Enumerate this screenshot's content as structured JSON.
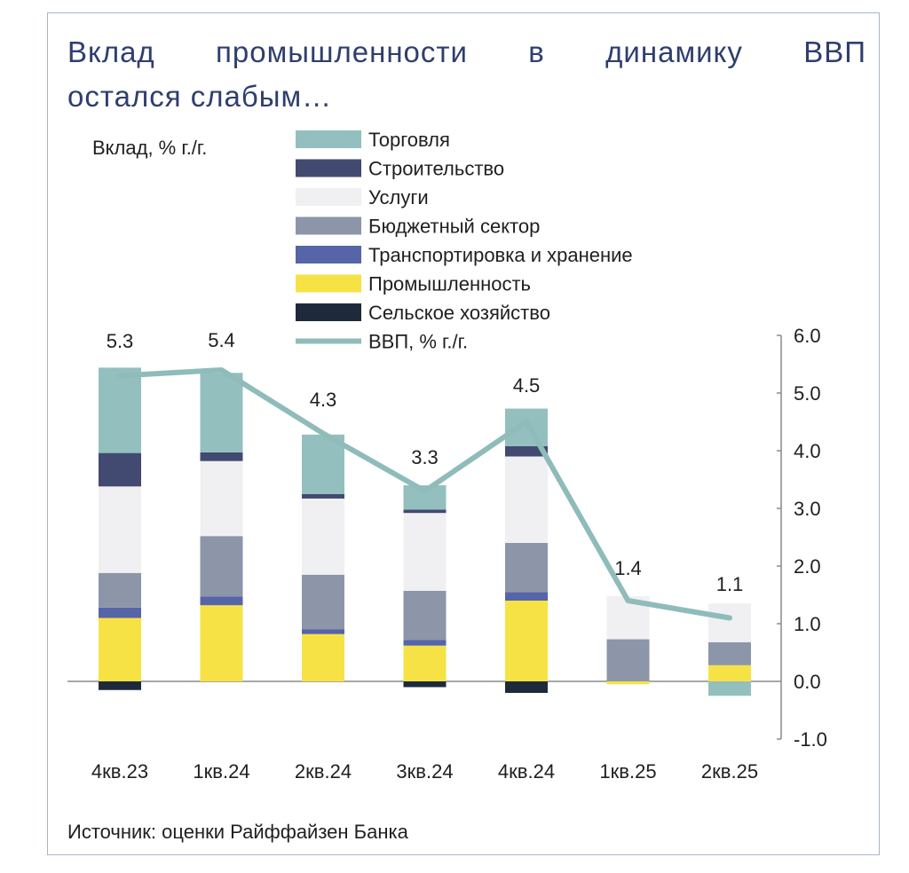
{
  "title_line1_words": [
    "Вклад",
    "промышленности",
    "в",
    "динамику",
    "ВВП"
  ],
  "title_line2": "остался слабым…",
  "source": "Источник: оценки Райффайзен Банка",
  "colors": {
    "trade": "#93c0be",
    "construction": "#424a72",
    "services": "#f0f0f2",
    "budget": "#8c96a8",
    "transport": "#5664a8",
    "industry": "#f7e245",
    "agriculture": "#1e2a3c",
    "gdp_line": "#8fbcba"
  },
  "chart_data": {
    "type": "bar",
    "stacked": true,
    "ylabel": "Вклад, % г./г.",
    "ylim": [
      -1.0,
      6.0
    ],
    "yticks": [
      "-1.0",
      "0.0",
      "1.0",
      "2.0",
      "3.0",
      "4.0",
      "5.0",
      "6.0"
    ],
    "yaxis_position": "right",
    "legend_position": "top",
    "categories": [
      "4кв.23",
      "1кв.24",
      "2кв.24",
      "3кв.24",
      "4кв.24",
      "1кв.25",
      "2кв.25"
    ],
    "series": [
      {
        "key": "agriculture",
        "name": "Сельское хозяйство",
        "values": [
          -0.15,
          0.0,
          0.0,
          -0.1,
          -0.2,
          0.0,
          0.0
        ]
      },
      {
        "key": "industry",
        "name": "Промышленность",
        "values": [
          1.1,
          1.32,
          0.82,
          0.62,
          1.4,
          -0.05,
          0.28
        ]
      },
      {
        "key": "transport",
        "name": "Транспортировка и хранение",
        "values": [
          0.18,
          0.15,
          0.08,
          0.1,
          0.15,
          0.0,
          0.0
        ]
      },
      {
        "key": "budget",
        "name": "Бюджетный сектор",
        "values": [
          0.6,
          1.05,
          0.95,
          0.85,
          0.85,
          0.73,
          0.4
        ]
      },
      {
        "key": "services",
        "name": "Услуги",
        "values": [
          1.5,
          1.3,
          1.32,
          1.35,
          1.5,
          0.75,
          0.67
        ]
      },
      {
        "key": "construction",
        "name": "Строительство",
        "values": [
          0.58,
          0.15,
          0.08,
          0.06,
          0.18,
          0.0,
          0.0
        ]
      },
      {
        "key": "trade",
        "name": "Торговля",
        "values": [
          1.48,
          1.38,
          1.03,
          0.42,
          0.65,
          0.0,
          -0.25
        ]
      }
    ],
    "gdp": {
      "name": "ВВП, % г./г.",
      "values": [
        5.3,
        5.4,
        4.3,
        3.3,
        4.5,
        1.4,
        1.1
      ],
      "labels": [
        "5.3",
        "5.4",
        "4.3",
        "3.3",
        "4.5",
        "1.4",
        "1.1"
      ]
    },
    "legend_order": [
      "trade",
      "construction",
      "services",
      "budget",
      "transport",
      "industry",
      "agriculture",
      "gdp"
    ]
  }
}
